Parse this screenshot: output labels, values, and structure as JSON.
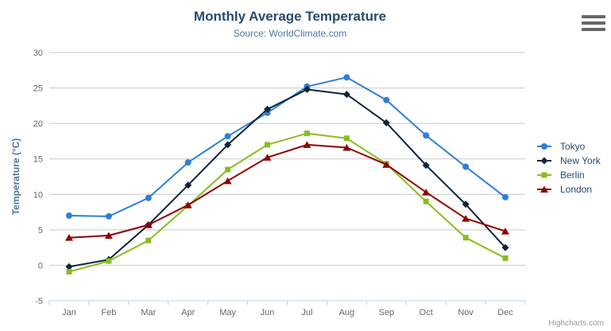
{
  "header": {
    "title": "Monthly Average Temperature",
    "subtitle": "Source: WorldClimate.com"
  },
  "chart_data": {
    "type": "line",
    "title": "Monthly Average Temperature",
    "subtitle": "Source: WorldClimate.com",
    "categories": [
      "Jan",
      "Feb",
      "Mar",
      "Apr",
      "May",
      "Jun",
      "Jul",
      "Aug",
      "Sep",
      "Oct",
      "Nov",
      "Dec"
    ],
    "xlabel": "",
    "ylabel": "Temperature (°C)",
    "ylim": [
      -5,
      30
    ],
    "yticks": [
      -5,
      0,
      5,
      10,
      15,
      20,
      25,
      30
    ],
    "grid": true,
    "legend_position": "right",
    "series": [
      {
        "name": "Tokyo",
        "color": "#2f7ed8",
        "marker": "circle",
        "values": [
          7.0,
          6.9,
          9.5,
          14.5,
          18.2,
          21.5,
          25.2,
          26.5,
          23.3,
          18.3,
          13.9,
          9.6
        ]
      },
      {
        "name": "New York",
        "color": "#0d233a",
        "marker": "diamond",
        "values": [
          -0.2,
          0.8,
          5.7,
          11.3,
          17.0,
          22.0,
          24.8,
          24.1,
          20.1,
          14.1,
          8.6,
          2.5
        ]
      },
      {
        "name": "Berlin",
        "color": "#8bbc21",
        "marker": "square",
        "values": [
          -0.9,
          0.6,
          3.5,
          8.4,
          13.5,
          17.0,
          18.6,
          17.9,
          14.3,
          9.0,
          3.9,
          1.0
        ]
      },
      {
        "name": "London",
        "color": "#910000",
        "marker": "triangle",
        "values": [
          3.9,
          4.2,
          5.7,
          8.5,
          11.9,
          15.2,
          17.0,
          16.6,
          14.2,
          10.3,
          6.6,
          4.8
        ]
      }
    ]
  },
  "colors": {
    "title": "#274b6d",
    "subtitle": "#4d759e",
    "axis_label": "#666666",
    "axis_title": "#4d759e",
    "grid": "#c8c8c8",
    "axis_line": "#c0d0e0",
    "legend_text": "#274b6d",
    "credit": "#999999"
  },
  "credit": {
    "label": "Highcharts.com"
  },
  "menu": {
    "icon": "hamburger-icon"
  }
}
